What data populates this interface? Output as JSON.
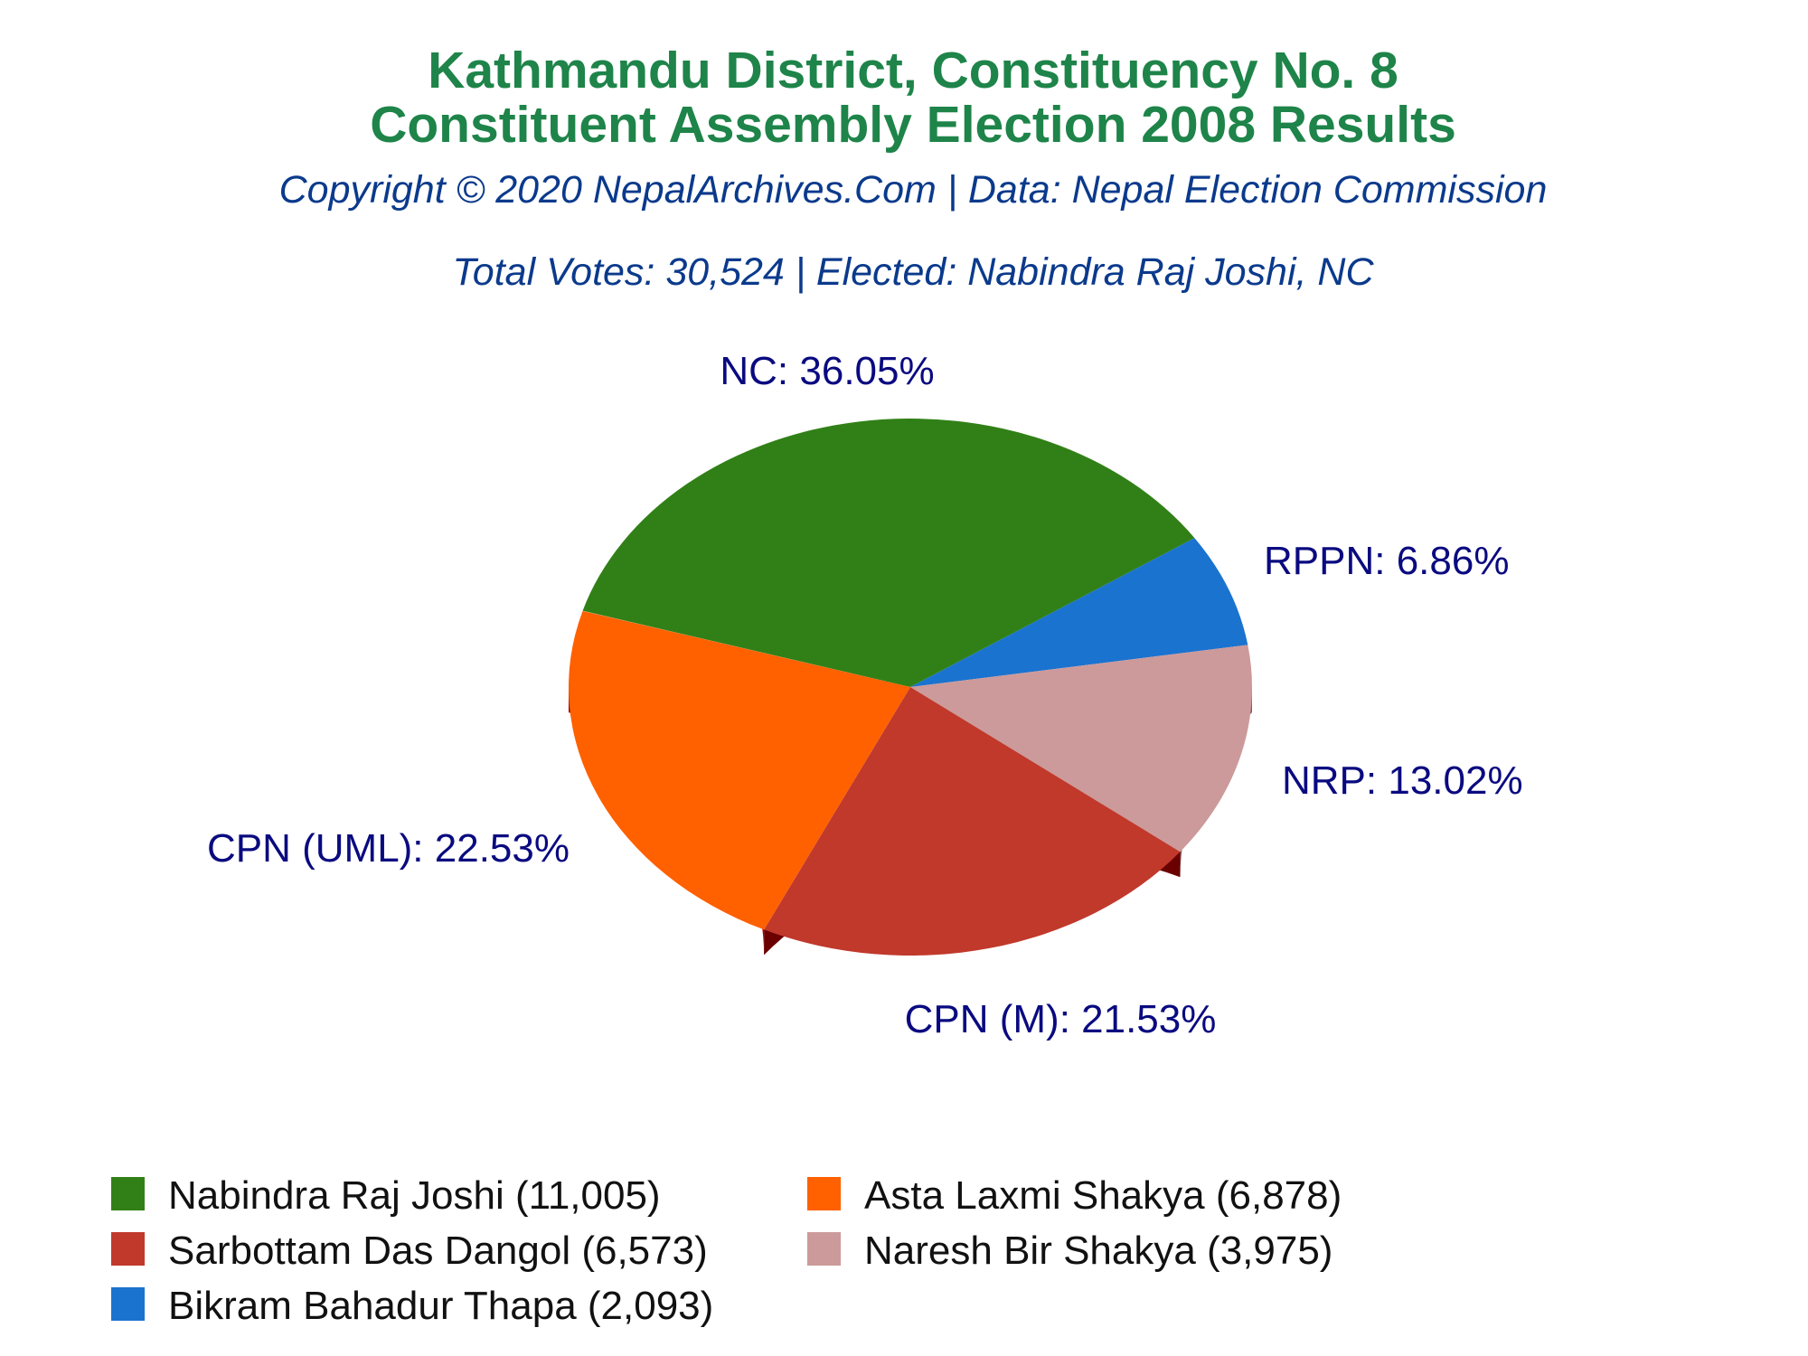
{
  "chart_data": {
    "type": "pie",
    "title": [
      "Kathmandu District, Constituency No. 8",
      "Constituent Assembly Election 2008 Results"
    ],
    "subtitle": [
      "Copyright © 2020 NepalArchives.Com | Data: Nepal Election Commission",
      "Total Votes: 30,524 | Elected: Nabindra Raj Joshi, NC"
    ],
    "slices": [
      {
        "label": "NC: 36.05%",
        "percent": 36.05,
        "color": "#318017",
        "side": "#1f5a0c"
      },
      {
        "label": "RPPN: 6.86%",
        "percent": 6.86,
        "color": "#1a73cf",
        "side": "#0f4b8a"
      },
      {
        "label": "NRP: 13.02%",
        "percent": 13.02,
        "color": "#cc9a9a",
        "side": "#8a5a5a"
      },
      {
        "label": "CPN (M): 21.53%",
        "percent": 21.53,
        "color": "#c0392b",
        "side": "#6a0000"
      },
      {
        "label": "CPN (UML): 22.53%",
        "percent": 22.53,
        "color": "#ff6000",
        "side": "#a80000"
      }
    ],
    "legend": [
      {
        "text": "Nabindra Raj Joshi (11,005)",
        "color": "#318017"
      },
      {
        "text": "Asta Laxmi Shakya (6,878)",
        "color": "#ff6000"
      },
      {
        "text": "Sarbottam Das Dangol (6,573)",
        "color": "#c0392b"
      },
      {
        "text": "Naresh Bir Shakya (3,975)",
        "color": "#cc9a9a"
      },
      {
        "text": "Bikram Bahadur Thapa (2,093)",
        "color": "#1a73cf"
      }
    ]
  }
}
